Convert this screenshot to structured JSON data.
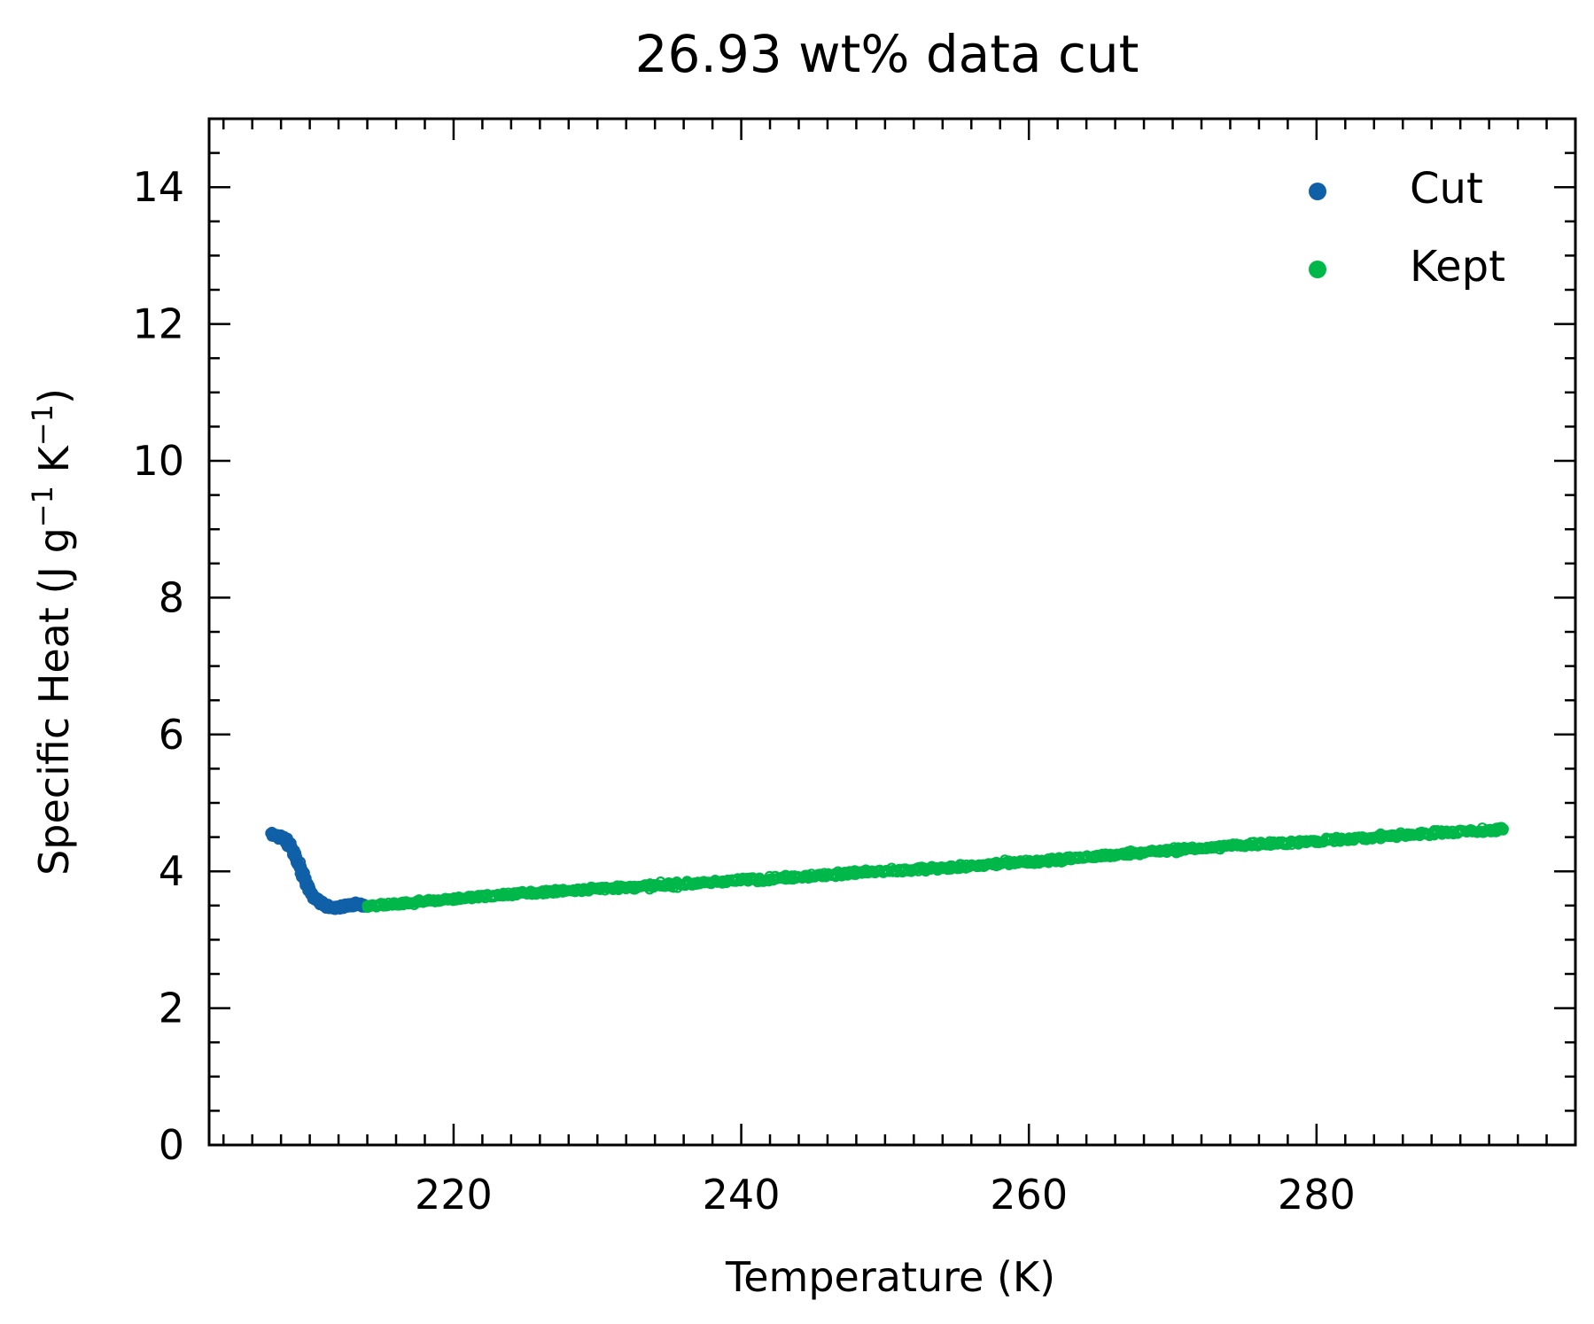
{
  "chart_data": {
    "type": "scatter",
    "title": "26.93 wt% data cut",
    "xlabel": "Temperature (K)",
    "ylabel_main": "Specific Heat (J g",
    "ylabel_mid": " K",
    "ylabel_end": ")",
    "ylabel_sup": "−1",
    "xlim": [
      203,
      298
    ],
    "ylim": [
      0,
      15
    ],
    "xticks_major": [
      220,
      240,
      260,
      280
    ],
    "xticks_minor_step": 2,
    "yticks_major": [
      0,
      2,
      4,
      6,
      8,
      10,
      12,
      14
    ],
    "yticks_minor_step": 0.5,
    "legend_position": "top-right",
    "series": [
      {
        "name": "Cut",
        "color": "#1060a8",
        "x": [
          207.3,
          207.6,
          207.9,
          208.2,
          208.5,
          208.8,
          209.1,
          209.4,
          209.7,
          210.0,
          210.3,
          210.6,
          211.0,
          211.4,
          211.8,
          212.2,
          212.6,
          213.0,
          213.4,
          213.8
        ],
        "y": [
          4.55,
          4.52,
          4.5,
          4.48,
          4.42,
          4.32,
          4.18,
          4.02,
          3.86,
          3.72,
          3.62,
          3.56,
          3.5,
          3.47,
          3.46,
          3.48,
          3.5,
          3.52,
          3.52,
          3.5
        ]
      },
      {
        "name": "Kept",
        "color": "#00b84a",
        "x": [
          214,
          216,
          218,
          220,
          222,
          224,
          226,
          228,
          230,
          232,
          234,
          236,
          238,
          240,
          242,
          244,
          246,
          248,
          250,
          252,
          254,
          256,
          258,
          260,
          262,
          264,
          266,
          268,
          270,
          272,
          274,
          276,
          278,
          280,
          282,
          284,
          286,
          288,
          290,
          292,
          293
        ],
        "y": [
          3.5,
          3.52,
          3.56,
          3.6,
          3.63,
          3.66,
          3.69,
          3.72,
          3.75,
          3.77,
          3.79,
          3.81,
          3.84,
          3.87,
          3.89,
          3.92,
          3.95,
          3.98,
          4.0,
          4.02,
          4.05,
          4.08,
          4.11,
          4.14,
          4.17,
          4.21,
          4.24,
          4.28,
          4.31,
          4.34,
          4.37,
          4.4,
          4.42,
          4.44,
          4.47,
          4.5,
          4.53,
          4.56,
          4.58,
          4.6,
          4.62
        ]
      }
    ]
  }
}
